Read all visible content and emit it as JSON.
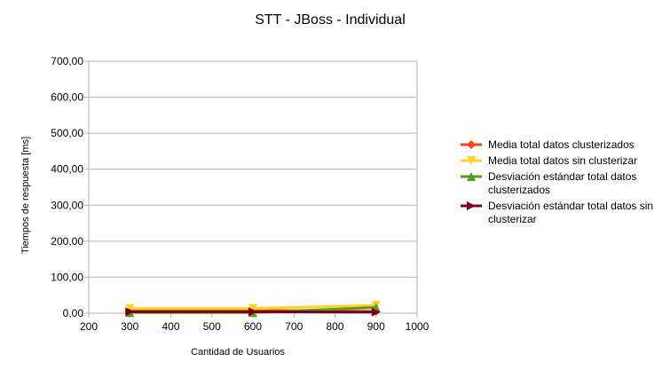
{
  "chart_data": {
    "type": "line",
    "title": "STT - JBoss - Individual",
    "xlabel": "Cantidad de Usuarios",
    "ylabel": "Tiempos de respuesta [ms]",
    "xlim": [
      200,
      1000
    ],
    "ylim": [
      0,
      700
    ],
    "x_ticks": [
      "200",
      "300",
      "400",
      "500",
      "600",
      "700",
      "800",
      "900",
      "1000"
    ],
    "y_ticks": [
      "0,00",
      "100,00",
      "200,00",
      "300,00",
      "400,00",
      "500,00",
      "600,00",
      "700,00"
    ],
    "grid": "horizontal",
    "legend": "right",
    "x": [
      300,
      600,
      900
    ],
    "series": [
      {
        "name": "Media total datos clusterizados",
        "values": [
          8,
          8,
          5
        ],
        "color": "#ff420e",
        "marker": "diamond"
      },
      {
        "name": "Media total datos sin clusterizar",
        "values": [
          13,
          13,
          22
        ],
        "color": "#ffd320",
        "marker": "triangle-down"
      },
      {
        "name": "Desviación estándar total datos clusterizados",
        "values": [
          2,
          2,
          16
        ],
        "color": "#579d1c",
        "marker": "triangle-up"
      },
      {
        "name": "Desviación estándar total datos sin clusterizar",
        "values": [
          4,
          4,
          3
        ],
        "color": "#7e0021",
        "marker": "triangle-right"
      }
    ]
  }
}
